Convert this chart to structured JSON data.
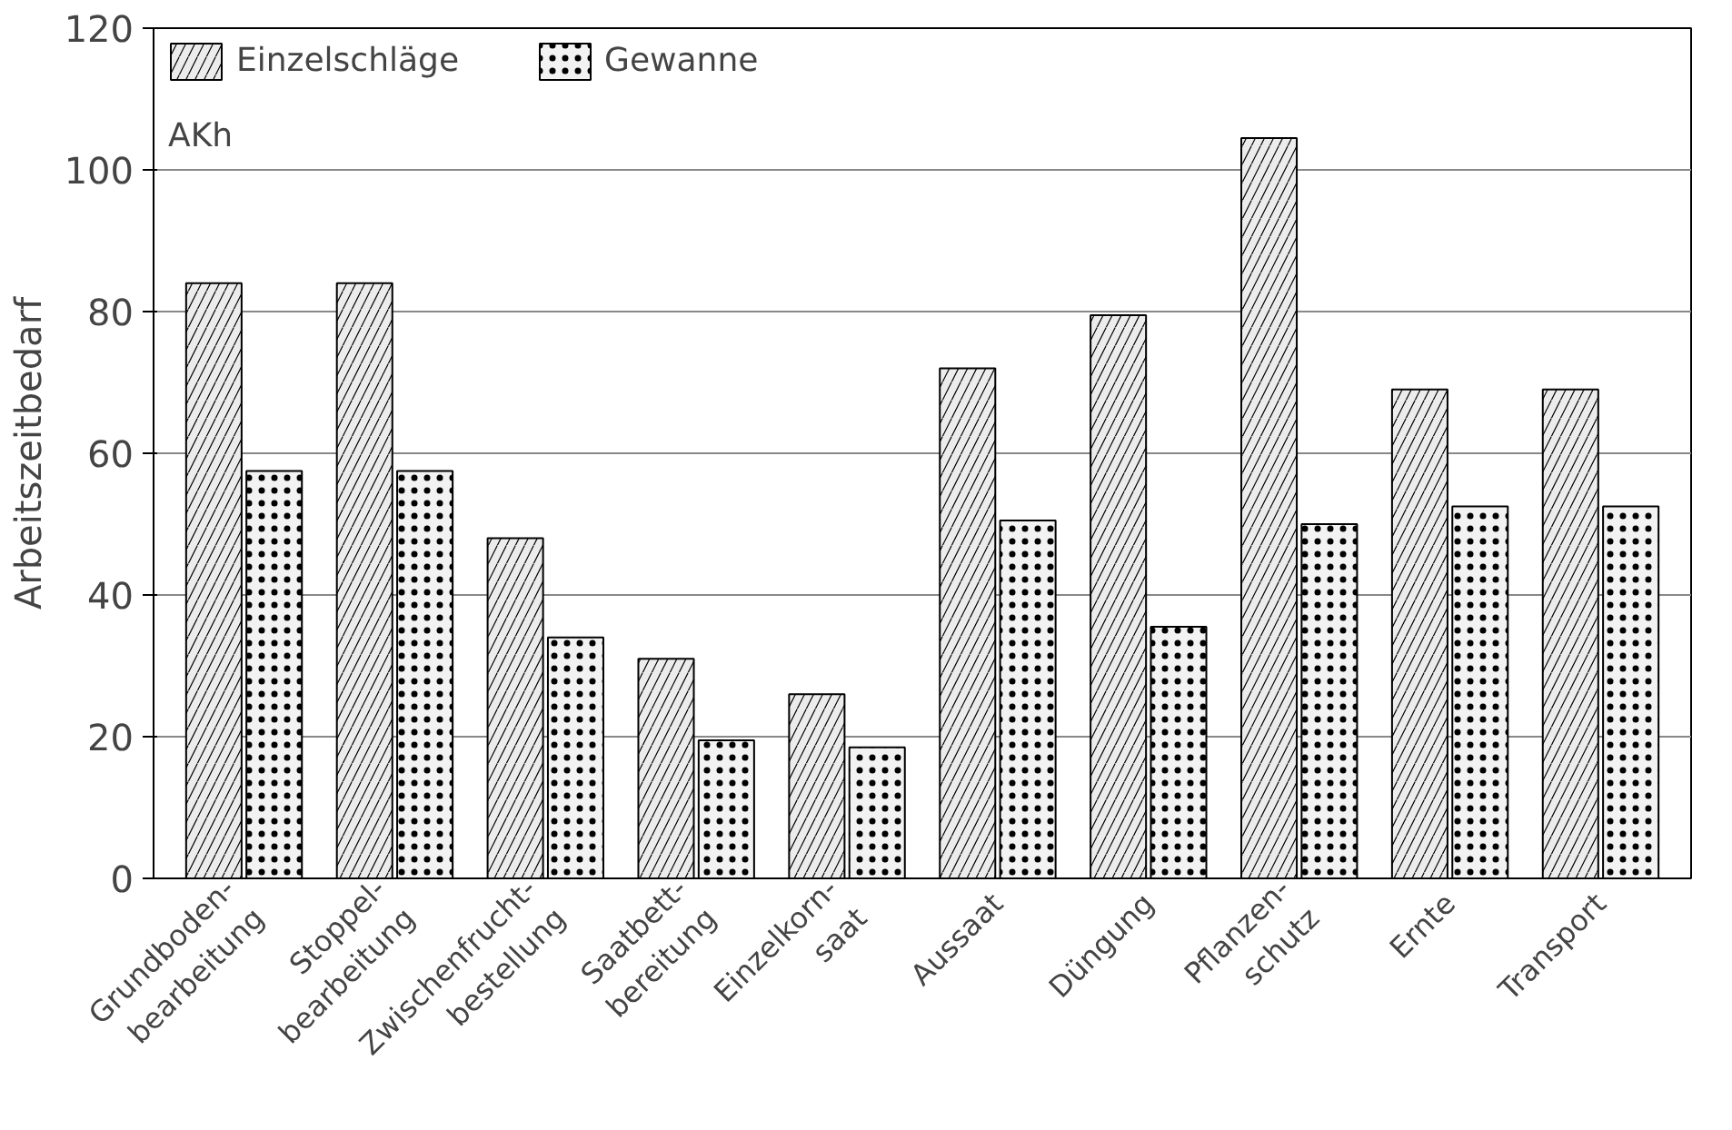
{
  "chart_data": {
    "type": "bar",
    "ylabel": "Arbeitszeitbedarf",
    "annotations": [
      "AKh"
    ],
    "categories": [
      "Grundboden-\nbearbeitung",
      "Stoppel-\nbearbeitung",
      "Zwischenfrucht-\nbestellung",
      "Saatbett-\nbereitung",
      "Einzelkorn-\nsaat",
      "Aussaat",
      "Düngung",
      "Pflanzen-\nschutz",
      "Ernte",
      "Transport"
    ],
    "series": [
      {
        "name": "Einzelschläge",
        "color": "#ececec",
        "values": [
          84,
          84,
          48,
          31,
          26,
          72,
          79.5,
          104.5,
          69,
          69
        ]
      },
      {
        "name": "Gewanne",
        "color": "#f2f2f2",
        "values": [
          57.5,
          57.5,
          34,
          19.5,
          18.5,
          50.5,
          35.5,
          50,
          52.5,
          52.5
        ]
      }
    ],
    "ylim": [
      0,
      120
    ],
    "yticks": [
      0,
      20,
      40,
      60,
      80,
      100,
      120
    ],
    "grid": "y",
    "legend": "top left"
  }
}
